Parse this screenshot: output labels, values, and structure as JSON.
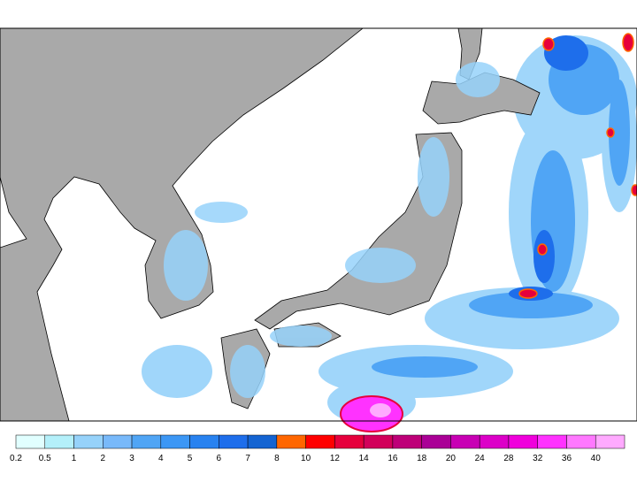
{
  "legend": {
    "levels": [
      0.2,
      0.5,
      1,
      2,
      3,
      4,
      5,
      6,
      7,
      8,
      10,
      12,
      14,
      16,
      18,
      20,
      24,
      28,
      32,
      36,
      40
    ],
    "colors": [
      "#e1ffff",
      "#b4f0fa",
      "#96d2fa",
      "#78b9fa",
      "#50a5f5",
      "#3c97f5",
      "#2882f0",
      "#1e6eeb",
      "#1464d2",
      "#ff6600",
      "#ff0000",
      "#e6003c",
      "#d2005a",
      "#be0078",
      "#aa0096",
      "#c800b4",
      "#dc00c8",
      "#f000dc",
      "#ff32ff",
      "#ff78ff",
      "#ffaaff"
    ]
  }
}
